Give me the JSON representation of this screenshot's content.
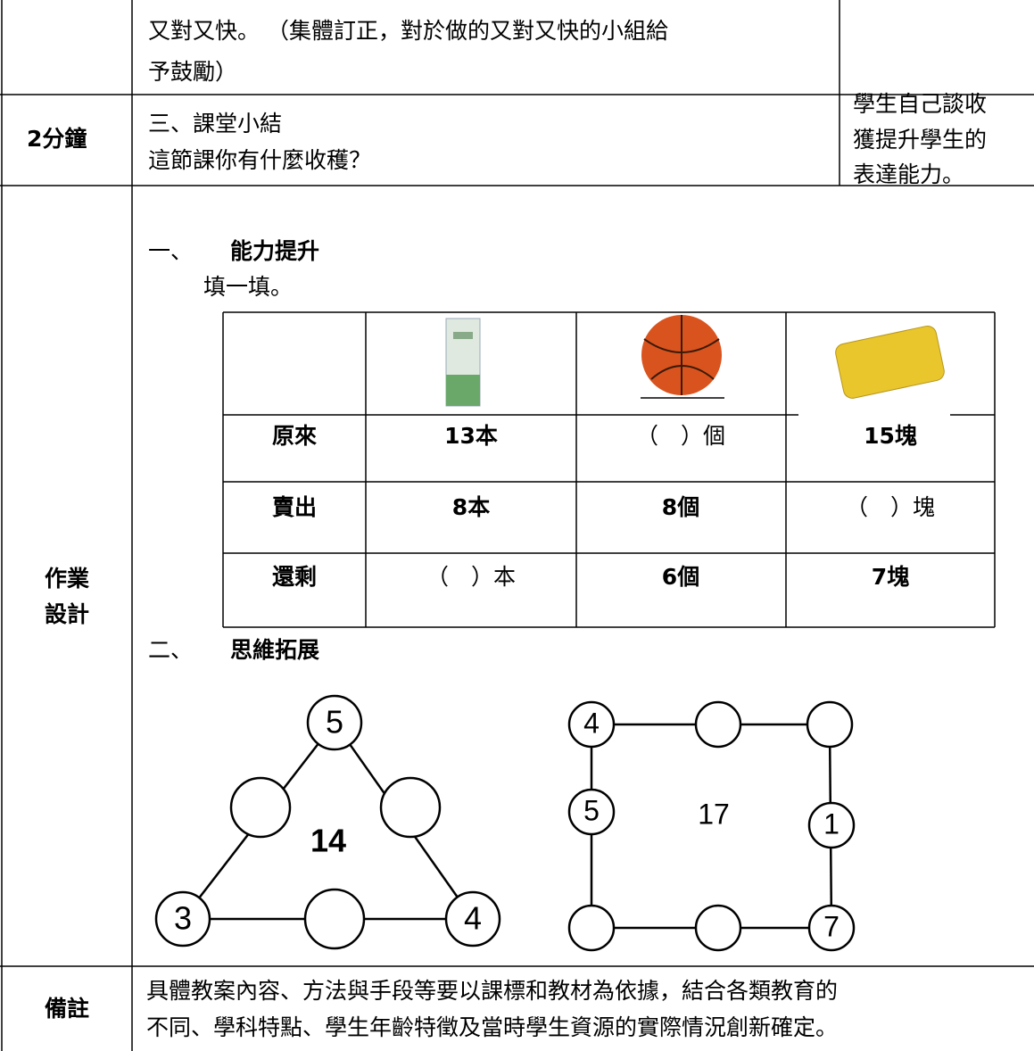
{
  "rows": [
    {
      "content": [
        "又對又快。 （集體訂正，對於做的又對又快的小組給",
        "予鼓勵）"
      ]
    },
    {
      "time": "2分鐘",
      "content": [
        "三、課堂小結",
        "這節課你有什麼收穫？"
      ],
      "note": [
        "學生自己談收",
        "獲提升學生的",
        "表達能力。"
      ]
    },
    {
      "time": [
        "作業",
        "設計"
      ],
      "heading1": {
        "number": "一、",
        "text": "能力提升"
      },
      "instruction": "填一填。",
      "table": {
        "rows": [
          [
            "原來",
            "13本",
            "（　）個",
            "15塊"
          ],
          [
            "賣出",
            "8本",
            "8個",
            "（　）塊"
          ],
          [
            "還剩",
            "（　）本",
            "6個",
            "7塊"
          ]
        ]
      },
      "heading2": {
        "number": "二、",
        "text": "思維拓展"
      },
      "triangle": {
        "center": "14",
        "top": "5",
        "bottom_left": "3",
        "bottom_right": "4"
      },
      "square": {
        "center": "17",
        "top_left": "4",
        "left_middle": "5",
        "right_middle": "1",
        "bottom_right": "7"
      }
    },
    {
      "time": "備註",
      "content": [
        "具體教案內容、方法與手段等要以課標和教材為依據，結合各類教育的",
        "不同、學科特點、學生年齡特徵及當時學生資源的實際情況創新確定。"
      ]
    }
  ]
}
